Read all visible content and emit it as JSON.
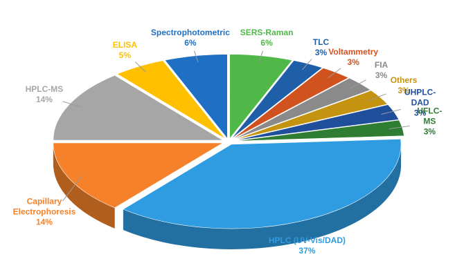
{
  "chart_data": {
    "type": "pie",
    "categories": [
      "SERS-Raman",
      "TLC",
      "Voltammetry",
      "FIA",
      "Others",
      "UHPLC-DAD",
      "UFLC-MS",
      "HPLC (UV-Vis/DAD)",
      "Capillary Electrophoresis",
      "HPLC-MS",
      "ELISA",
      "Spectrophotometric"
    ],
    "values": [
      6,
      3,
      3,
      3,
      3,
      3,
      3,
      37,
      14,
      14,
      5,
      6
    ],
    "value_labels": [
      "6%",
      "3%",
      "3%",
      "3%",
      "3%",
      "3%",
      "3%",
      "37%",
      "14%",
      "14%",
      "5%",
      "6%"
    ],
    "colors": [
      "#4fb848",
      "#1f5fa8",
      "#d0531f",
      "#8a8a8a",
      "#c4930f",
      "#1f4e9a",
      "#2e7d32",
      "#2f9be0",
      "#f5822a",
      "#a6a6a6",
      "#ffc000",
      "#1f6fc4"
    ]
  }
}
